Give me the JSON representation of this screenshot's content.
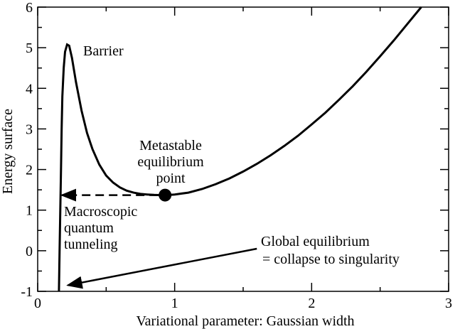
{
  "chart_data": {
    "type": "line",
    "xlabel": "Variational parameter: Gaussian width",
    "ylabel": "Energy surface",
    "xlim": [
      0,
      3
    ],
    "ylim": [
      -1,
      6
    ],
    "x_ticks": [
      "0",
      "1",
      "2",
      "3"
    ],
    "y_ticks": [
      "-1",
      "0",
      "1",
      "2",
      "3",
      "4",
      "5",
      "6"
    ],
    "grid": false,
    "series": [
      {
        "points": [
          [
            0.155,
            -1.0
          ],
          [
            0.16,
            0.0
          ],
          [
            0.165,
            1.0
          ],
          [
            0.17,
            2.0
          ],
          [
            0.175,
            3.0
          ],
          [
            0.18,
            3.8
          ],
          [
            0.19,
            4.5
          ],
          [
            0.2,
            4.9
          ],
          [
            0.215,
            5.08
          ],
          [
            0.23,
            5.05
          ],
          [
            0.25,
            4.75
          ],
          [
            0.28,
            4.15
          ],
          [
            0.32,
            3.45
          ],
          [
            0.36,
            2.9
          ],
          [
            0.4,
            2.5
          ],
          [
            0.45,
            2.12
          ],
          [
            0.5,
            1.85
          ],
          [
            0.55,
            1.68
          ],
          [
            0.6,
            1.56
          ],
          [
            0.65,
            1.48
          ],
          [
            0.7,
            1.43
          ],
          [
            0.75,
            1.4
          ],
          [
            0.8,
            1.385
          ],
          [
            0.85,
            1.375
          ],
          [
            0.9,
            1.37
          ],
          [
            0.95,
            1.372
          ],
          [
            1.0,
            1.385
          ],
          [
            1.1,
            1.43
          ],
          [
            1.2,
            1.52
          ],
          [
            1.3,
            1.64
          ],
          [
            1.4,
            1.78
          ],
          [
            1.5,
            1.95
          ],
          [
            1.6,
            2.14
          ],
          [
            1.7,
            2.35
          ],
          [
            1.8,
            2.58
          ],
          [
            1.9,
            2.83
          ],
          [
            2.0,
            3.11
          ],
          [
            2.1,
            3.4
          ],
          [
            2.2,
            3.72
          ],
          [
            2.3,
            4.05
          ],
          [
            2.4,
            4.41
          ],
          [
            2.5,
            4.79
          ],
          [
            2.6,
            5.18
          ],
          [
            2.7,
            5.59
          ],
          [
            2.8,
            6.0
          ]
        ]
      }
    ],
    "marker_point": {
      "x": 0.93,
      "y": 1.37
    },
    "tunneling_arrow": {
      "from": [
        0.93,
        1.37
      ],
      "to": [
        0.15,
        1.37
      ],
      "style": "dashed"
    },
    "global_arrow": {
      "from": [
        1.6,
        0.05
      ],
      "to": [
        0.22,
        -0.85
      ]
    },
    "annotations": {
      "barrier": "Barrier",
      "metastable": [
        "Metastable",
        "equilibrium",
        "point"
      ],
      "tunneling": [
        "Macroscopic",
        "quantum",
        "tunneling"
      ],
      "global": [
        "Global equilibrium",
        "= collapse to singularity"
      ]
    }
  }
}
